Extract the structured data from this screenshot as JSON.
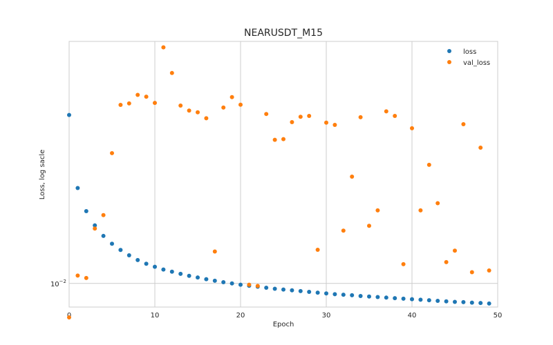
{
  "chart_data": {
    "type": "scatter",
    "title": "NEARUSDT_M15",
    "xlabel": "Epoch",
    "ylabel": "Loss, log sacle",
    "xlim": [
      0,
      50
    ],
    "x_ticks": [
      0,
      10,
      20,
      30,
      40,
      50
    ],
    "y_scale": "log",
    "ylim": [
      0.0091,
      0.0263
    ],
    "y_ticks": [
      {
        "value": 0.01,
        "base": "10",
        "exp": "−2"
      }
    ],
    "grid": true,
    "legend_position": "top-right",
    "series": [
      {
        "name": "loss",
        "color": "#1f77b4",
        "x": [
          0,
          1,
          2,
          3,
          4,
          5,
          6,
          7,
          8,
          9,
          10,
          11,
          12,
          13,
          14,
          15,
          16,
          17,
          18,
          19,
          20,
          21,
          22,
          23,
          24,
          25,
          26,
          27,
          28,
          29,
          30,
          31,
          32,
          33,
          34,
          35,
          36,
          37,
          38,
          39,
          40,
          41,
          42,
          43,
          44,
          45,
          46,
          47,
          48,
          49
        ],
        "y": [
          0.0196,
          0.01464,
          0.01335,
          0.01261,
          0.01209,
          0.01172,
          0.01143,
          0.01119,
          0.01098,
          0.01082,
          0.01069,
          0.01057,
          0.01048,
          0.01039,
          0.01031,
          0.01024,
          0.01017,
          0.01011,
          0.01005,
          0.01,
          0.00995,
          0.00991,
          0.00987,
          0.00983,
          0.00979,
          0.00976,
          0.00973,
          0.0097,
          0.00967,
          0.00964,
          0.00961,
          0.00958,
          0.00956,
          0.00954,
          0.00951,
          0.00949,
          0.00947,
          0.00945,
          0.00943,
          0.00941,
          0.00939,
          0.00937,
          0.00935,
          0.00933,
          0.00931,
          0.00929,
          0.00928,
          0.00926,
          0.00925,
          0.00923
        ]
      },
      {
        "name": "val_loss",
        "color": "#ff7f0e",
        "x": [
          0,
          1,
          2,
          3,
          4,
          5,
          6,
          7,
          8,
          9,
          10,
          11,
          12,
          13,
          14,
          15,
          16,
          17,
          18,
          19,
          20,
          21,
          22,
          23,
          24,
          25,
          26,
          27,
          28,
          29,
          30,
          31,
          32,
          33,
          34,
          35,
          36,
          37,
          38,
          39,
          40,
          41,
          42,
          43,
          44,
          45,
          46,
          47,
          48,
          49
        ],
        "y": [
          0.00873,
          0.01032,
          0.01022,
          0.01245,
          0.01314,
          0.01683,
          0.02041,
          0.02053,
          0.02124,
          0.02109,
          0.02057,
          0.02568,
          0.02318,
          0.02035,
          0.01995,
          0.01981,
          0.01935,
          0.01136,
          0.02019,
          0.02105,
          0.02042,
          0.00995,
          0.0099,
          0.01968,
          0.01775,
          0.0178,
          0.01905,
          0.01946,
          0.01953,
          0.01144,
          0.01901,
          0.01884,
          0.01235,
          0.01532,
          0.01943,
          0.01259,
          0.01339,
          0.01989,
          0.01953,
          0.0108,
          0.01859,
          0.01339,
          0.01606,
          0.01378,
          0.01089,
          0.0114,
          0.01889,
          0.01046,
          0.0172,
          0.01053
        ]
      }
    ]
  }
}
